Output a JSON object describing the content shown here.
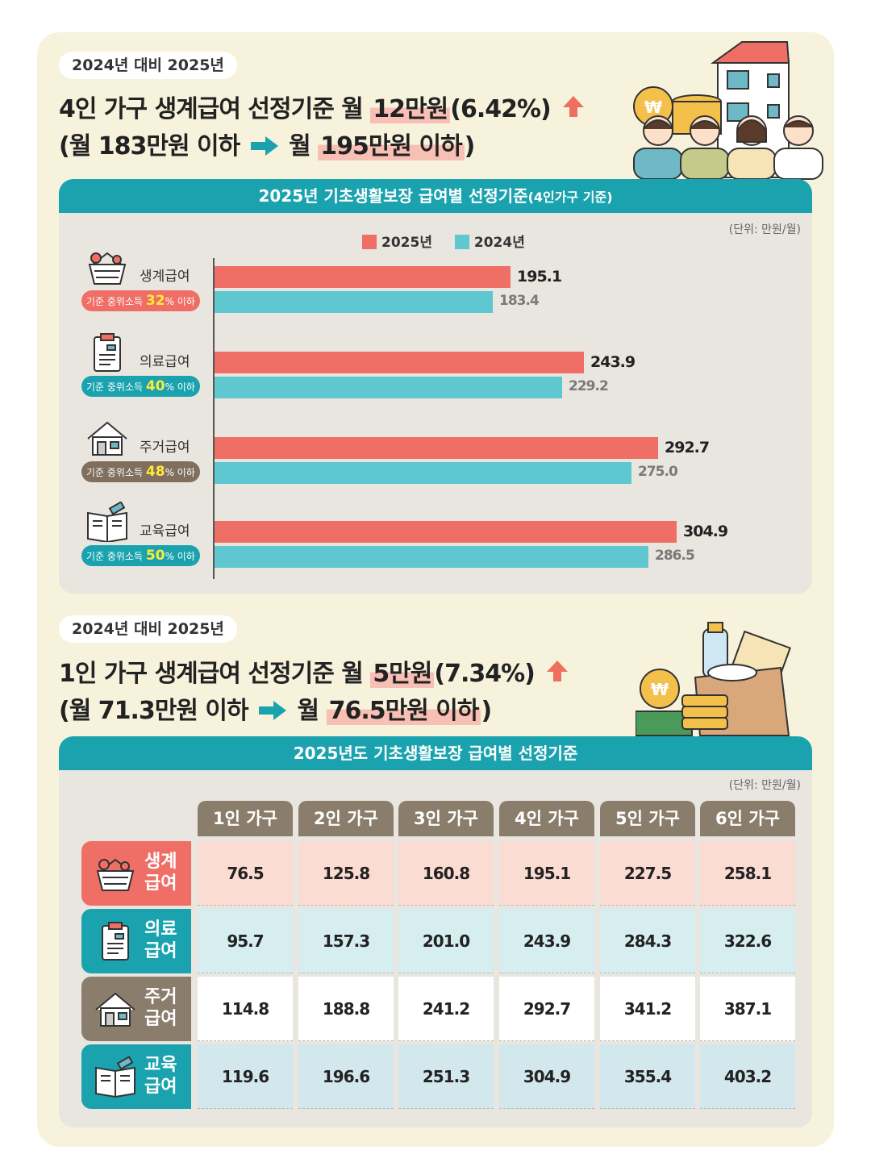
{
  "section1": {
    "pill": "2024년 대비 2025년",
    "headline1_a": "4인 가구 생계급여 선정기준 월",
    "headline1_hl": "12만원",
    "headline1_b": "(6.42%)",
    "headline2_a": "(월 183만원 이하",
    "headline2_b": "월",
    "headline2_hl": "195만원 이하",
    "headline2_c": ")"
  },
  "panel1": {
    "title": "2025년 기초생활보장 급여별 선정기준",
    "title_small": "(4인가구 기준)",
    "unit": "(단위: 만원/월)",
    "legend": [
      {
        "label": "2025년",
        "color": "#ef6f66"
      },
      {
        "label": "2024년",
        "color": "#5fc7cf"
      }
    ],
    "categories": [
      {
        "name": "생계급여",
        "badge_prefix": "기준 중위소득",
        "badge_pct": "32",
        "badge_suffix": "% 이하",
        "badge_color": "#ef6f66",
        "icon": "shopping-basket-icon"
      },
      {
        "name": "의료급여",
        "badge_prefix": "기준 중위소득",
        "badge_pct": "40",
        "badge_suffix": "% 이하",
        "badge_color": "#1aa3af",
        "icon": "medical-chart-icon"
      },
      {
        "name": "주거급여",
        "badge_prefix": "기준 중위소득",
        "badge_pct": "48",
        "badge_suffix": "% 이하",
        "badge_color": "#7f6f5c",
        "icon": "house-icon"
      },
      {
        "name": "교육급여",
        "badge_prefix": "기준 중위소득",
        "badge_pct": "50",
        "badge_suffix": "% 이하",
        "badge_color": "#1aa3af",
        "icon": "open-book-icon"
      }
    ]
  },
  "chart_data": {
    "type": "bar",
    "orientation": "horizontal",
    "title": "2025년 기초생활보장 급여별 선정기준(4인가구 기준)",
    "unit": "(단위: 만원/월)",
    "categories": [
      "생계급여",
      "의료급여",
      "주거급여",
      "교육급여"
    ],
    "series": [
      {
        "name": "2025년",
        "values": [
          195.1,
          243.9,
          292.7,
          304.9
        ],
        "labels": [
          "195.1",
          "243.9",
          "292.7",
          "304.9"
        ],
        "color": "#ef6f66"
      },
      {
        "name": "2024년",
        "values": [
          183.4,
          229.2,
          275.0,
          286.5
        ],
        "labels": [
          "183.4",
          "229.2",
          "275.0",
          "286.5"
        ],
        "color": "#5fc7cf"
      }
    ],
    "xlim": [
      0,
      330
    ],
    "grid": false,
    "legend": "top-center"
  },
  "section2": {
    "pill": "2024년 대비 2025년",
    "headline1_a": "1인 가구 생계급여 선정기준 월",
    "headline1_hl": "5만원",
    "headline1_b": "(7.34%)",
    "headline2_a": "(월 71.3만원 이하",
    "headline2_b": "월",
    "headline2_hl": "76.5만원 이하",
    "headline2_c": ")"
  },
  "panel2": {
    "title": "2025년도 기초생활보장 급여별 선정기준",
    "unit": "(단위: 만원/월)",
    "columns": [
      "1인 가구",
      "2인 가구",
      "3인 가구",
      "4인 가구",
      "5인 가구",
      "6인 가구"
    ],
    "rows": [
      {
        "line1": "생계",
        "line2": "급여",
        "color": "#ef6f66",
        "bg": "#fbdcd3",
        "icon": "shopping-basket-icon",
        "values": [
          "76.5",
          "125.8",
          "160.8",
          "195.1",
          "227.5",
          "258.1"
        ]
      },
      {
        "line1": "의료",
        "line2": "급여",
        "color": "#1aa3af",
        "bg": "#d6eef0",
        "icon": "medical-chart-icon",
        "values": [
          "95.7",
          "157.3",
          "201.0",
          "243.9",
          "284.3",
          "322.6"
        ]
      },
      {
        "line1": "주거",
        "line2": "급여",
        "color": "#8a7d6b",
        "bg": "#ffffff",
        "icon": "house-icon",
        "values": [
          "114.8",
          "188.8",
          "241.2",
          "292.7",
          "341.2",
          "387.1"
        ]
      },
      {
        "line1": "교육",
        "line2": "급여",
        "color": "#1aa3af",
        "bg": "#d2e8ec",
        "icon": "open-book-icon",
        "values": [
          "119.6",
          "196.6",
          "251.3",
          "304.9",
          "355.4",
          "403.2"
        ]
      }
    ]
  }
}
